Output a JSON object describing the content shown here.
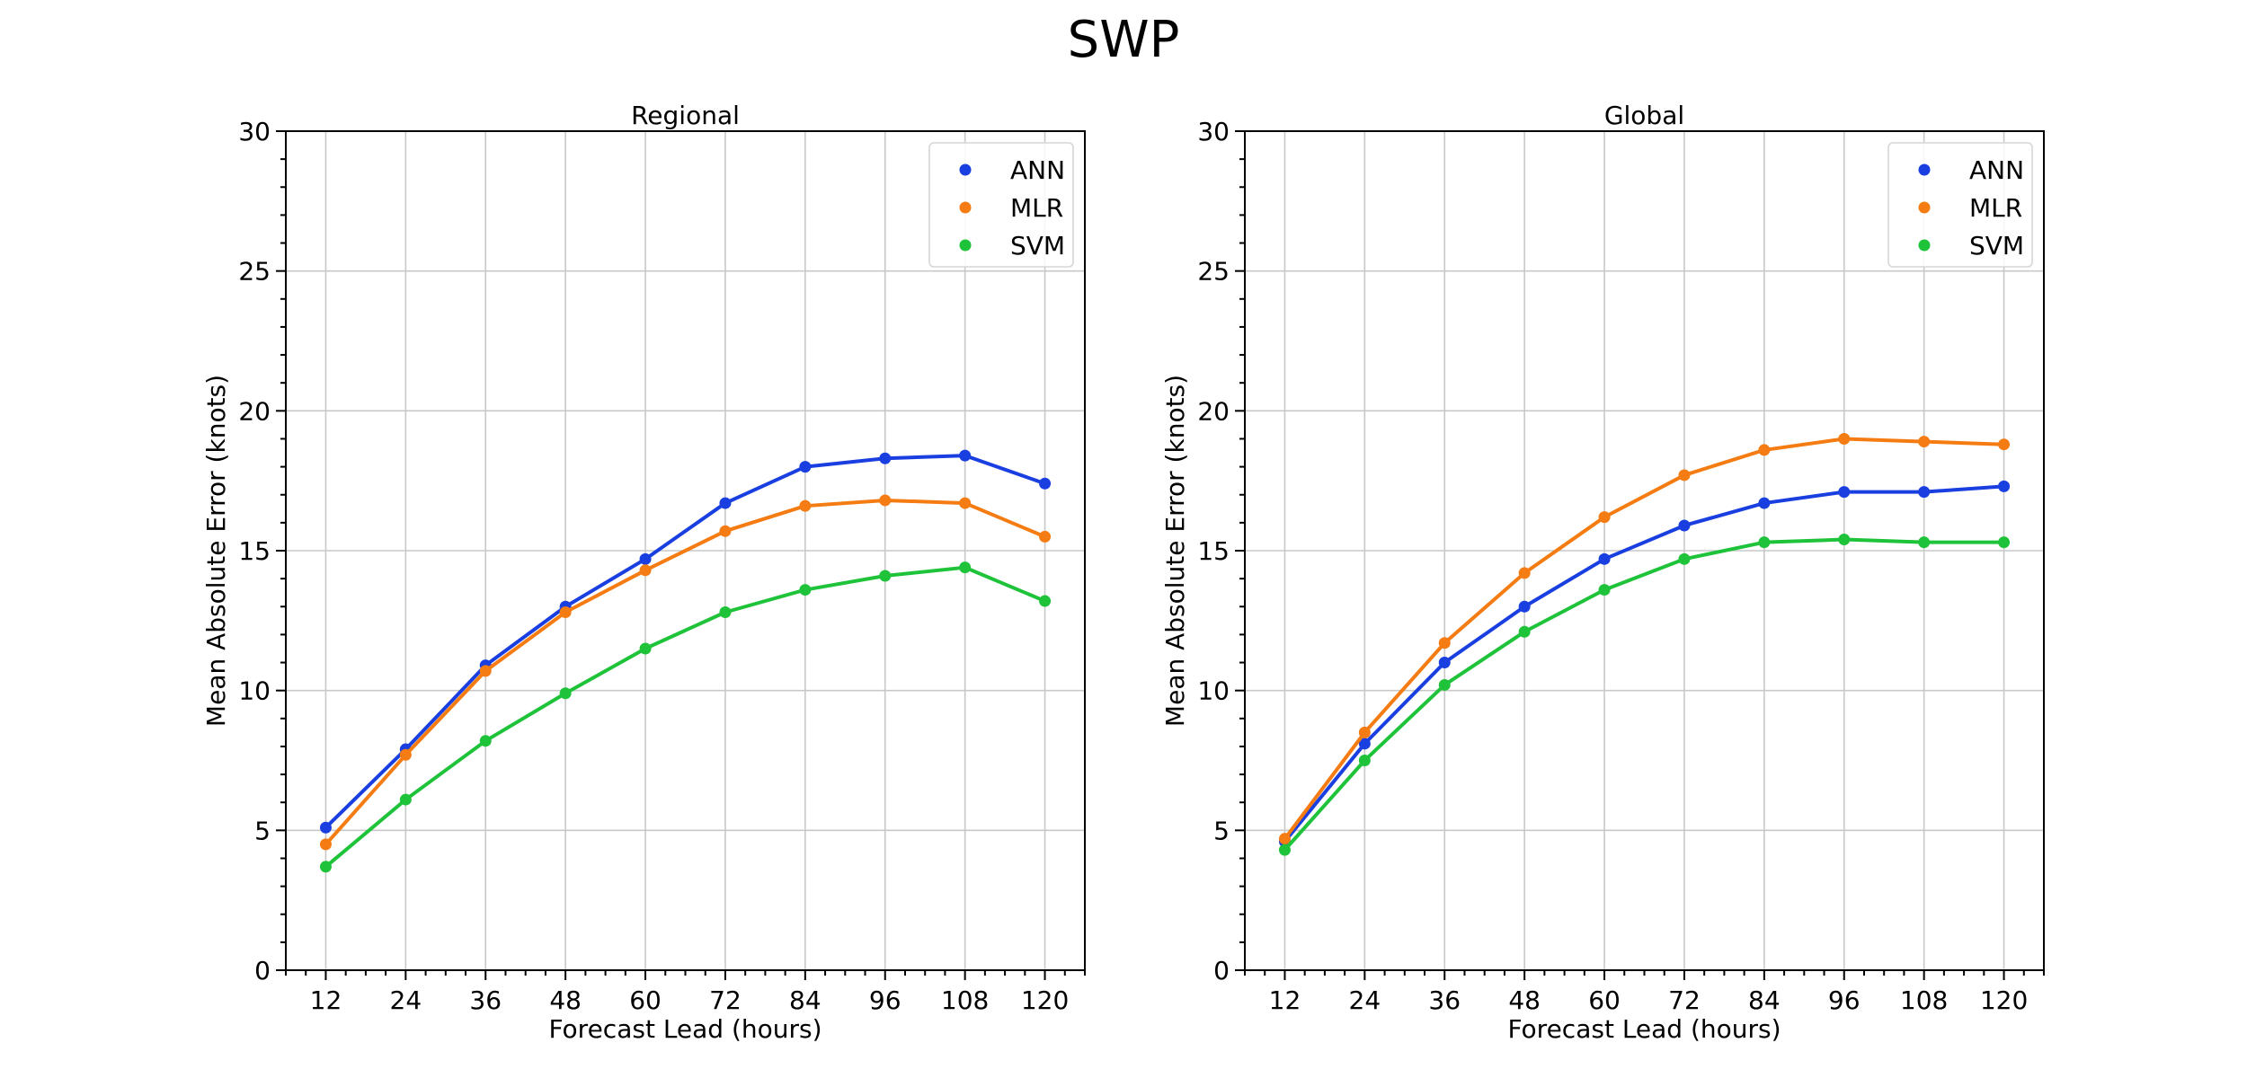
{
  "figure": {
    "title": "SWP"
  },
  "chart_data": [
    {
      "type": "line",
      "title": "Regional",
      "xlabel": "Forecast Lead (hours)",
      "ylabel": "Mean Absolute Error (knots)",
      "x": [
        12,
        24,
        36,
        48,
        60,
        72,
        84,
        96,
        108,
        120
      ],
      "xlim": [
        6,
        126
      ],
      "ylim": [
        0,
        30
      ],
      "yticks": [
        0,
        5,
        10,
        15,
        20,
        25,
        30
      ],
      "grid": true,
      "legend": "top-right",
      "series": [
        {
          "name": "ANN",
          "color": "#1a3fe0",
          "values": [
            5.1,
            7.9,
            10.9,
            13.0,
            14.7,
            16.7,
            18.0,
            18.3,
            18.4,
            17.4
          ]
        },
        {
          "name": "MLR",
          "color": "#f57c12",
          "values": [
            4.5,
            7.7,
            10.7,
            12.8,
            14.3,
            15.7,
            16.6,
            16.8,
            16.7,
            15.5
          ]
        },
        {
          "name": "SVM",
          "color": "#1fc33a",
          "values": [
            3.7,
            6.1,
            8.2,
            9.9,
            11.5,
            12.8,
            13.6,
            14.1,
            14.4,
            13.2
          ]
        }
      ]
    },
    {
      "type": "line",
      "title": "Global",
      "xlabel": "Forecast Lead (hours)",
      "ylabel": "Mean Absolute Error (knots)",
      "x": [
        12,
        24,
        36,
        48,
        60,
        72,
        84,
        96,
        108,
        120
      ],
      "xlim": [
        6,
        126
      ],
      "ylim": [
        0,
        30
      ],
      "yticks": [
        0,
        5,
        10,
        15,
        20,
        25,
        30
      ],
      "grid": true,
      "legend": "top-right",
      "series": [
        {
          "name": "ANN",
          "color": "#1a3fe0",
          "values": [
            4.6,
            8.1,
            11.0,
            13.0,
            14.7,
            15.9,
            16.7,
            17.1,
            17.1,
            17.3
          ]
        },
        {
          "name": "MLR",
          "color": "#f57c12",
          "values": [
            4.7,
            8.5,
            11.7,
            14.2,
            16.2,
            17.7,
            18.6,
            19.0,
            18.9,
            18.8
          ]
        },
        {
          "name": "SVM",
          "color": "#1fc33a",
          "values": [
            4.3,
            7.5,
            10.2,
            12.1,
            13.6,
            14.7,
            15.3,
            15.4,
            15.3,
            15.3
          ]
        }
      ]
    }
  ]
}
